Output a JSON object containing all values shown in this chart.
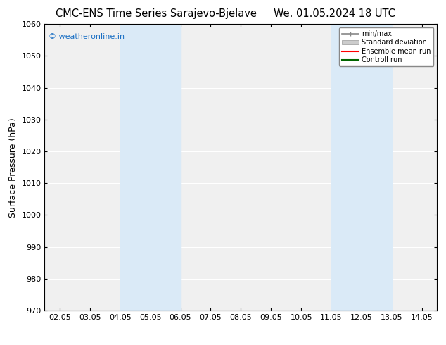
{
  "title_left": "CMC-ENS Time Series Sarajevo-Bjelave",
  "title_right": "We. 01.05.2024 18 UTC",
  "ylabel": "Surface Pressure (hPa)",
  "ylim": [
    970,
    1060
  ],
  "yticks": [
    970,
    980,
    990,
    1000,
    1010,
    1020,
    1030,
    1040,
    1050,
    1060
  ],
  "xtick_labels": [
    "02.05",
    "03.05",
    "04.05",
    "05.05",
    "06.05",
    "07.05",
    "08.05",
    "09.05",
    "10.05",
    "11.05",
    "12.05",
    "13.05",
    "14.05"
  ],
  "xtick_positions": [
    0,
    1,
    2,
    3,
    4,
    5,
    6,
    7,
    8,
    9,
    10,
    11,
    12
  ],
  "xlim": [
    -0.5,
    12.5
  ],
  "shaded_regions": [
    {
      "x_start": 2,
      "x_end": 4,
      "color": "#daeaf7"
    },
    {
      "x_start": 9,
      "x_end": 11,
      "color": "#daeaf7"
    }
  ],
  "watermark_text": "© weatheronline.in",
  "watermark_color": "#1a6fc4",
  "background_color": "#ffffff",
  "plot_bg_color": "#f0f0f0",
  "grid_color": "#ffffff",
  "title_fontsize": 10.5,
  "tick_fontsize": 8,
  "ylabel_fontsize": 9
}
